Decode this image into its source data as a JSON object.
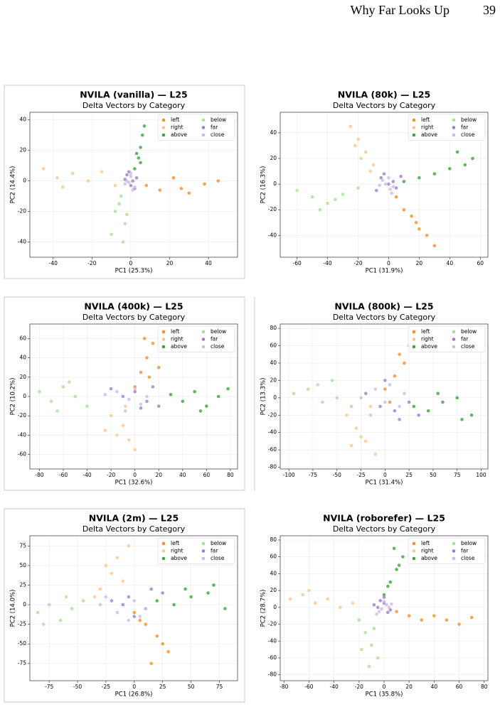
{
  "header": {
    "title": "Why Far Looks Up",
    "page": "39"
  },
  "chart_data": [
    {
      "type": "scatter",
      "title": "NVILA (vanilla) — L25",
      "subtitle": "Delta Vectors by Category",
      "xlabel": "PC1 (25.3%)",
      "ylabel": "PC2 (14.4%)",
      "xlim": [
        -52,
        55
      ],
      "ylim": [
        -50,
        45
      ],
      "xticks": [
        -40,
        -20,
        0,
        20,
        40
      ],
      "yticks": [
        -40,
        -20,
        0,
        20,
        40
      ],
      "grid": true,
      "legend": "upper right",
      "series": [
        {
          "name": "left",
          "color": "#f28e2b",
          "x": [
            8,
            15,
            22,
            30,
            38,
            45,
            26
          ],
          "values": [
            -3,
            -6,
            2,
            -8,
            -2,
            0,
            -5
          ]
        },
        {
          "name": "right",
          "color": "#fdc58e",
          "x": [
            -45,
            -38,
            -30,
            -22,
            -15,
            -8,
            -35
          ],
          "values": [
            8,
            2,
            5,
            0,
            6,
            -3,
            -4
          ]
        },
        {
          "name": "above",
          "color": "#3da33d",
          "x": [
            2,
            4,
            5,
            6,
            3,
            7,
            5
          ],
          "values": [
            8,
            15,
            22,
            30,
            18,
            36,
            12
          ]
        },
        {
          "name": "below",
          "color": "#a6e09a",
          "x": [
            -5,
            -8,
            -3,
            -10,
            -6,
            -2,
            -4
          ],
          "values": [
            -10,
            -20,
            -28,
            -35,
            -15,
            -22,
            -40
          ]
        },
        {
          "name": "far",
          "color": "#9b7fcb",
          "x": [
            -2,
            1,
            0,
            3,
            -1,
            2,
            -3
          ],
          "values": [
            4,
            0,
            -3,
            2,
            6,
            -5,
            1
          ]
        },
        {
          "name": "close",
          "color": "#cbbbe4",
          "x": [
            -1,
            0,
            2,
            -2,
            1,
            0,
            -3
          ],
          "values": [
            -1,
            3,
            -4,
            0,
            -6,
            5,
            -2
          ]
        }
      ]
    },
    {
      "type": "scatter",
      "title": "NVILA (80k) — L25",
      "subtitle": "Delta Vectors by Category",
      "xlabel": "PC1 (31.9%)",
      "ylabel": "PC2 (16.3%)",
      "xlim": [
        -71,
        65
      ],
      "ylim": [
        -57,
        56
      ],
      "xticks": [
        -60,
        -40,
        -20,
        0,
        20,
        40,
        60
      ],
      "yticks": [
        -40,
        -20,
        0,
        20,
        40
      ],
      "grid": true,
      "legend": "upper right",
      "series": [
        {
          "name": "left",
          "color": "#f28e2b",
          "x": [
            5,
            10,
            15,
            20,
            25,
            30,
            18
          ],
          "values": [
            -10,
            -20,
            -25,
            -35,
            -40,
            -48,
            -30
          ]
        },
        {
          "name": "right",
          "color": "#fdc58e",
          "x": [
            -25,
            -20,
            -15,
            -10,
            -22,
            -18,
            -12
          ],
          "values": [
            45,
            35,
            25,
            15,
            30,
            20,
            10
          ]
        },
        {
          "name": "above",
          "color": "#3da33d",
          "x": [
            10,
            20,
            30,
            40,
            50,
            55,
            45
          ],
          "values": [
            2,
            5,
            8,
            12,
            15,
            20,
            25
          ]
        },
        {
          "name": "below",
          "color": "#a6e09a",
          "x": [
            -60,
            -50,
            -40,
            -30,
            -20,
            -45,
            -35
          ],
          "values": [
            -5,
            -10,
            -15,
            -8,
            -3,
            -20,
            -12
          ]
        },
        {
          "name": "far",
          "color": "#9b7fcb",
          "x": [
            -5,
            0,
            5,
            -3,
            3,
            -8,
            8
          ],
          "values": [
            5,
            0,
            -3,
            8,
            2,
            -5,
            6
          ]
        },
        {
          "name": "close",
          "color": "#cbbbe4",
          "x": [
            -2,
            1,
            -4,
            3,
            0,
            -6,
            2
          ],
          "values": [
            0,
            -4,
            3,
            -2,
            5,
            -1,
            -7
          ]
        }
      ]
    },
    {
      "type": "scatter",
      "title": "NVILA (400k) — L25",
      "subtitle": "Delta Vectors by Category",
      "xlabel": "PC1 (32.6%)",
      "ylabel": "PC2 (10.2%)",
      "xlim": [
        -88,
        86
      ],
      "ylim": [
        -75,
        75
      ],
      "xticks": [
        -80,
        -60,
        -40,
        -20,
        0,
        20,
        40,
        60,
        80
      ],
      "yticks": [
        -60,
        -40,
        -20,
        0,
        20,
        40,
        60
      ],
      "grid": true,
      "legend": "upper right",
      "series": [
        {
          "name": "left",
          "color": "#f28e2b",
          "x": [
            0,
            5,
            10,
            15,
            20,
            8,
            12
          ],
          "values": [
            10,
            25,
            40,
            55,
            30,
            60,
            20
          ]
        },
        {
          "name": "right",
          "color": "#fdc58e",
          "x": [
            -20,
            -10,
            -5,
            0,
            -15,
            -8,
            -25
          ],
          "values": [
            -20,
            -30,
            -45,
            -55,
            -40,
            -10,
            -35
          ]
        },
        {
          "name": "above",
          "color": "#3da33d",
          "x": [
            30,
            40,
            50,
            60,
            70,
            78,
            55
          ],
          "values": [
            2,
            -5,
            5,
            -10,
            0,
            8,
            -15
          ]
        },
        {
          "name": "below",
          "color": "#a6e09a",
          "x": [
            -80,
            -70,
            -60,
            -50,
            -40,
            -65,
            -55
          ],
          "values": [
            5,
            -5,
            10,
            0,
            -10,
            -15,
            15
          ]
        },
        {
          "name": "far",
          "color": "#9b7fcb",
          "x": [
            -10,
            0,
            10,
            20,
            -20,
            5,
            15
          ],
          "values": [
            0,
            5,
            -5,
            -10,
            8,
            -12,
            10
          ]
        },
        {
          "name": "close",
          "color": "#cbbbe4",
          "x": [
            -15,
            -5,
            0,
            5,
            -25,
            10,
            -8
          ],
          "values": [
            5,
            -3,
            8,
            -8,
            2,
            0,
            -15
          ]
        }
      ]
    },
    {
      "type": "scatter",
      "title": "NVILA (800k) — L25",
      "subtitle": "Delta Vectors by Category",
      "xlabel": "PC1 (31.4%)",
      "ylabel": "PC2 (13.3%)",
      "xlim": [
        -109,
        107
      ],
      "ylim": [
        -82,
        85
      ],
      "xticks": [
        -100,
        -75,
        -50,
        -25,
        0,
        25,
        50,
        75,
        100
      ],
      "yticks": [
        -80,
        -60,
        -40,
        -20,
        0,
        20,
        40,
        60,
        80
      ],
      "grid": true,
      "legend": "upper right",
      "series": [
        {
          "name": "left",
          "color": "#f28e2b",
          "x": [
            0,
            10,
            20,
            25,
            30,
            15,
            5
          ],
          "values": [
            10,
            25,
            40,
            60,
            75,
            50,
            -5
          ]
        },
        {
          "name": "right",
          "color": "#fdc58e",
          "x": [
            -40,
            -30,
            -20,
            -10,
            -25,
            -35,
            -15
          ],
          "values": [
            -20,
            -35,
            -50,
            -65,
            -45,
            -55,
            -10
          ]
        },
        {
          "name": "above",
          "color": "#3da33d",
          "x": [
            30,
            45,
            60,
            75,
            90,
            55,
            80
          ],
          "values": [
            -10,
            -15,
            -5,
            0,
            -20,
            5,
            -25
          ]
        },
        {
          "name": "below",
          "color": "#a6e09a",
          "x": [
            -95,
            -80,
            -65,
            -50,
            -35,
            -70,
            -55
          ],
          "values": [
            5,
            10,
            -5,
            0,
            -10,
            15,
            20
          ]
        },
        {
          "name": "far",
          "color": "#9b7fcb",
          "x": [
            -20,
            -5,
            10,
            25,
            35,
            0,
            15
          ],
          "values": [
            5,
            -10,
            -15,
            -5,
            -20,
            20,
            -25
          ]
        },
        {
          "name": "close",
          "color": "#cbbbe4",
          "x": [
            -25,
            -10,
            0,
            5,
            15,
            -15,
            20
          ],
          "values": [
            0,
            10,
            -5,
            15,
            -10,
            -20,
            5
          ]
        }
      ]
    },
    {
      "type": "scatter",
      "title": "NVILA (2m) — L25",
      "subtitle": "Delta Vectors by Category",
      "xlabel": "PC1 (26.8%)",
      "ylabel": "PC2 (14.0%)",
      "xlim": [
        -92,
        91
      ],
      "ylim": [
        -97,
        88
      ],
      "xticks": [
        -75,
        -50,
        -25,
        0,
        25,
        50,
        75
      ],
      "yticks": [
        -75,
        -50,
        -25,
        0,
        25,
        50,
        75
      ],
      "grid": true,
      "legend": "upper right",
      "series": [
        {
          "name": "left",
          "color": "#f28e2b",
          "x": [
            0,
            10,
            20,
            30,
            15,
            25,
            5
          ],
          "values": [
            -10,
            -25,
            -40,
            -60,
            -75,
            -50,
            -20
          ]
        },
        {
          "name": "right",
          "color": "#fdc58e",
          "x": [
            -30,
            -20,
            -15,
            -5,
            -25,
            -10,
            -35
          ],
          "values": [
            20,
            40,
            60,
            75,
            50,
            30,
            10
          ]
        },
        {
          "name": "above",
          "color": "#3da33d",
          "x": [
            20,
            35,
            50,
            65,
            80,
            45,
            70
          ],
          "values": [
            5,
            0,
            10,
            15,
            -5,
            20,
            25
          ]
        },
        {
          "name": "below",
          "color": "#a6e09a",
          "x": [
            -85,
            -75,
            -65,
            -55,
            -45,
            -80,
            -60
          ],
          "values": [
            -10,
            0,
            -20,
            -5,
            5,
            -25,
            10
          ]
        },
        {
          "name": "far",
          "color": "#9b7fcb",
          "x": [
            -20,
            -5,
            10,
            25,
            0,
            15,
            -10
          ],
          "values": [
            5,
            10,
            -5,
            15,
            -15,
            20,
            0
          ]
        },
        {
          "name": "close",
          "color": "#cbbbe4",
          "x": [
            -30,
            -15,
            0,
            5,
            -25,
            -5,
            10
          ],
          "values": [
            0,
            -10,
            5,
            -15,
            10,
            -20,
            -5
          ]
        }
      ]
    },
    {
      "type": "scatter",
      "title": "NVILA (roborefer) — L25",
      "subtitle": "Delta Vectors by Category",
      "xlabel": "PC1 (35.8%)",
      "ylabel": "PC2 (28.7%)",
      "xlim": [
        -83,
        83
      ],
      "ylim": [
        -87,
        85
      ],
      "xticks": [
        -80,
        -60,
        -40,
        -20,
        0,
        20,
        40,
        60,
        80
      ],
      "yticks": [
        -80,
        -60,
        -40,
        -20,
        0,
        20,
        40,
        60,
        80
      ],
      "grid": true,
      "legend": "upper right",
      "series": [
        {
          "name": "left",
          "color": "#f28e2b",
          "x": [
            10,
            20,
            30,
            40,
            50,
            60,
            70
          ],
          "values": [
            -5,
            -10,
            -15,
            -10,
            -15,
            -20,
            -12
          ]
        },
        {
          "name": "right",
          "color": "#fdc58e",
          "x": [
            -75,
            -65,
            -55,
            -45,
            -35,
            -25,
            -60
          ],
          "values": [
            10,
            15,
            5,
            10,
            0,
            5,
            20
          ]
        },
        {
          "name": "above",
          "color": "#3da33d",
          "x": [
            0,
            5,
            10,
            15,
            8,
            12,
            3
          ],
          "values": [
            15,
            30,
            45,
            60,
            70,
            50,
            25
          ]
        },
        {
          "name": "below",
          "color": "#a6e09a",
          "x": [
            -20,
            -15,
            -10,
            -5,
            -12,
            -18,
            -8
          ],
          "values": [
            -15,
            -30,
            -45,
            -60,
            -70,
            -50,
            -25
          ]
        },
        {
          "name": "far",
          "color": "#9b7fcb",
          "x": [
            -5,
            0,
            5,
            -3,
            3,
            0,
            -8
          ],
          "values": [
            0,
            5,
            -3,
            8,
            -6,
            12,
            3
          ]
        },
        {
          "name": "close",
          "color": "#cbbbe4",
          "x": [
            -2,
            2,
            -6,
            4,
            0,
            -4,
            6
          ],
          "values": [
            -2,
            3,
            -8,
            0,
            7,
            -5,
            4
          ]
        }
      ]
    }
  ]
}
